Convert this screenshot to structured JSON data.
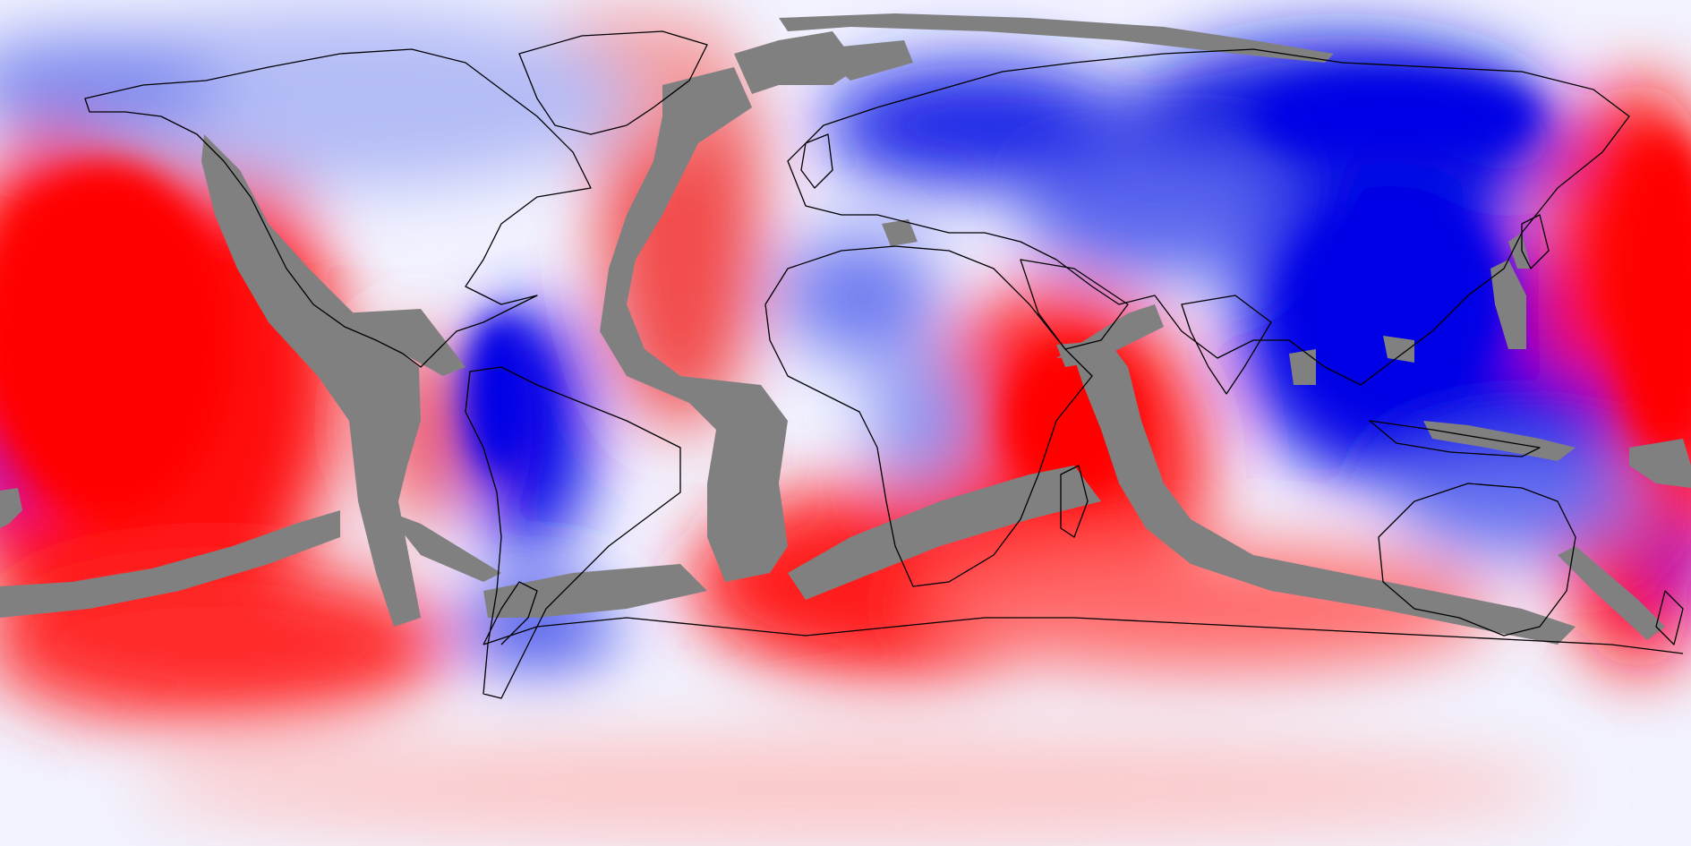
{
  "map": {
    "projection": "equirectangular",
    "colors": {
      "positive_strong": "#ff0000",
      "positive_mid": "#f56464",
      "positive_light": "#fcd2d2",
      "neutral": "#f4f6ff",
      "negative_light": "#c8cdfa",
      "negative_mid": "#6470f0",
      "negative_strong": "#0000e6",
      "masked": "#808080",
      "coastline": "#000000"
    }
  }
}
